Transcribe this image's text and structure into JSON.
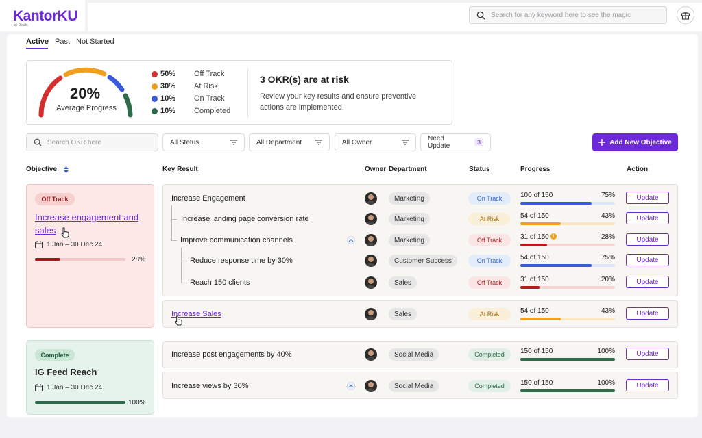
{
  "app": {
    "logo_text": "KantorKU",
    "logo_sub": "by Dealls"
  },
  "header": {
    "search_placeholder": "Search for any keyword here to see the magic"
  },
  "tabs": [
    {
      "label": "Active"
    },
    {
      "label": "Past"
    },
    {
      "label": "Not Started"
    }
  ],
  "summary": {
    "average_progress": "20%",
    "average_label": "Average Progress",
    "legend": [
      {
        "pct": "50%",
        "label": "Off Track",
        "color": "#d32f2f"
      },
      {
        "pct": "30%",
        "label": "At Risk",
        "color": "#f0a020"
      },
      {
        "pct": "10%",
        "label": "On Track",
        "color": "#3b5bdb"
      },
      {
        "pct": "10%",
        "label": "Completed",
        "color": "#2e6b4a"
      }
    ],
    "risk_title": "3 OKR(s) are at risk",
    "risk_desc": "Review your key results and ensure preventive actions are implemented."
  },
  "filters": {
    "search_placeholder": "Search OKR here",
    "status": "All Status",
    "department": "All Department",
    "owner": "All Owner",
    "need_update": "Need Update",
    "need_update_count": "3",
    "add_button": "Add New Objective"
  },
  "columns": {
    "objective": "Objective",
    "key_result": "Key Result",
    "owner": "Owner",
    "department": "Department",
    "status": "Status",
    "progress": "Progress",
    "action": "Action"
  },
  "objectives": [
    {
      "badge": "Off Track",
      "title": "Increase engagement and sales",
      "date": "1 Jan – 30 Dec 24",
      "progress": "28%",
      "progress_value": 0.28
    },
    {
      "badge": "Complete",
      "title": "IG Feed Reach",
      "date": "1 Jan – 30 Dec 24",
      "progress": "100%",
      "progress_value": 1.0
    }
  ],
  "key_results": [
    {
      "title": "Increase Engagement",
      "department": "Marketing",
      "status": "On Track",
      "progress_text": "100 of 150",
      "pct": "75%",
      "value": 0.75,
      "action": "Update"
    },
    {
      "title": "Increase landing page conversion rate",
      "department": "Marketing",
      "status": "At Risk",
      "progress_text": "54 of 150",
      "pct": "43%",
      "value": 0.43,
      "action": "Update"
    },
    {
      "title": "Improve communication channels",
      "department": "Marketing",
      "status": "Off Track",
      "progress_text": "31 of 150",
      "pct": "28%",
      "value": 0.28,
      "action": "Update"
    },
    {
      "title": "Reduce response time by 30%",
      "department": "Customer Success",
      "status": "On Track",
      "progress_text": "54 of 150",
      "pct": "75%",
      "value": 0.75,
      "action": "Update"
    },
    {
      "title": "Reach 150 clients",
      "department": "Sales",
      "status": "Off Track",
      "progress_text": "31 of 150",
      "pct": "20%",
      "value": 0.2,
      "action": "Update"
    },
    {
      "title": "Increase Sales",
      "department": "Sales",
      "status": "At Risk",
      "progress_text": "54 of 150",
      "pct": "43%",
      "value": 0.43,
      "action": "Update"
    },
    {
      "title": "Increase post engagements by 40%",
      "department": "Social Media",
      "status": "Completed",
      "progress_text": "150 of 150",
      "pct": "100%",
      "value": 1.0,
      "action": "Update"
    },
    {
      "title": "Increase views by 30%",
      "department": "Social Media",
      "status": "Completed",
      "progress_text": "150 of 150",
      "pct": "100%",
      "value": 1.0,
      "action": "Update"
    }
  ],
  "colors": {
    "accent": "#6d28d9",
    "on_track": "#3b5bdb",
    "at_risk": "#f0a020",
    "off_track": "#b71c1c",
    "completed": "#2e6b4a"
  }
}
